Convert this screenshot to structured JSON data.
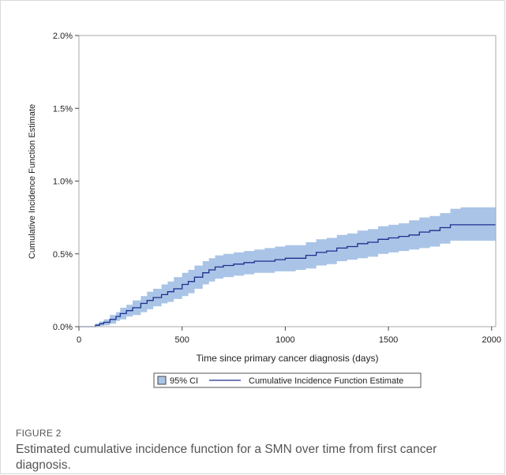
{
  "figure": {
    "label": "FIGURE 2",
    "caption": "Estimated cumulative incidence function for a SMN over time from first cancer diagnosis."
  },
  "colors": {
    "ci_fill": "#a9c4e6",
    "line": "#1d2f8f",
    "axis": "#444444",
    "frame": "#aaaaaa"
  },
  "chart_data": {
    "type": "line",
    "title": "",
    "xlabel": "Time since primary cancer diagnosis (days)",
    "ylabel": "Cumulative Incidence Function Estimate",
    "xlim": [
      0,
      2020
    ],
    "ylim": [
      0,
      2.0
    ],
    "xticks": [
      0,
      500,
      1000,
      1500,
      2000
    ],
    "xtick_labels": [
      "0",
      "500",
      "1000",
      "1500",
      "2000"
    ],
    "yticks": [
      0,
      0.5,
      1.0,
      1.5,
      2.0
    ],
    "ytick_labels": [
      "0.0%",
      "0.5%",
      "1.0%",
      "1.5%",
      "2.0%"
    ],
    "legend_position": "bottom",
    "legend": [
      "95% CI",
      "Cumulative Incidence Function Estimate"
    ],
    "series": [
      {
        "name": "Cumulative Incidence Function Estimate",
        "x": [
          0,
          60,
          80,
          100,
          120,
          150,
          180,
          200,
          230,
          260,
          300,
          330,
          360,
          400,
          430,
          460,
          500,
          530,
          560,
          600,
          630,
          660,
          700,
          750,
          800,
          850,
          900,
          950,
          1000,
          1050,
          1100,
          1150,
          1200,
          1250,
          1300,
          1350,
          1400,
          1450,
          1500,
          1550,
          1600,
          1650,
          1700,
          1750,
          1800,
          1850,
          1900,
          1950,
          2020
        ],
        "values": [
          0,
          0,
          0.01,
          0.02,
          0.03,
          0.05,
          0.07,
          0.09,
          0.11,
          0.13,
          0.16,
          0.18,
          0.2,
          0.22,
          0.24,
          0.26,
          0.29,
          0.31,
          0.34,
          0.37,
          0.39,
          0.41,
          0.42,
          0.43,
          0.44,
          0.45,
          0.45,
          0.46,
          0.47,
          0.47,
          0.49,
          0.51,
          0.52,
          0.54,
          0.55,
          0.57,
          0.58,
          0.6,
          0.61,
          0.62,
          0.63,
          0.65,
          0.66,
          0.68,
          0.7,
          0.7,
          0.7,
          0.7,
          0.7
        ]
      },
      {
        "name": "95% CI",
        "x": [
          0,
          60,
          80,
          100,
          120,
          150,
          180,
          200,
          230,
          260,
          300,
          330,
          360,
          400,
          430,
          460,
          500,
          530,
          560,
          600,
          630,
          660,
          700,
          750,
          800,
          850,
          900,
          950,
          1000,
          1050,
          1100,
          1150,
          1200,
          1250,
          1300,
          1350,
          1400,
          1450,
          1500,
          1550,
          1600,
          1650,
          1700,
          1750,
          1800,
          1850,
          1900,
          1950,
          2020
        ],
        "lower": [
          0,
          0,
          0,
          0.005,
          0.01,
          0.02,
          0.04,
          0.05,
          0.07,
          0.08,
          0.1,
          0.12,
          0.14,
          0.16,
          0.17,
          0.19,
          0.21,
          0.23,
          0.26,
          0.29,
          0.31,
          0.33,
          0.34,
          0.35,
          0.36,
          0.37,
          0.37,
          0.38,
          0.38,
          0.39,
          0.4,
          0.42,
          0.43,
          0.45,
          0.46,
          0.47,
          0.48,
          0.5,
          0.51,
          0.52,
          0.53,
          0.54,
          0.55,
          0.57,
          0.59,
          0.59,
          0.59,
          0.59,
          0.59
        ],
        "upper": [
          0,
          0,
          0.02,
          0.035,
          0.05,
          0.08,
          0.1,
          0.13,
          0.15,
          0.18,
          0.21,
          0.24,
          0.26,
          0.29,
          0.31,
          0.34,
          0.37,
          0.39,
          0.42,
          0.45,
          0.47,
          0.49,
          0.5,
          0.51,
          0.52,
          0.53,
          0.54,
          0.55,
          0.56,
          0.56,
          0.58,
          0.6,
          0.61,
          0.63,
          0.64,
          0.66,
          0.67,
          0.69,
          0.7,
          0.71,
          0.73,
          0.75,
          0.76,
          0.78,
          0.81,
          0.82,
          0.82,
          0.82,
          0.82
        ]
      }
    ]
  }
}
